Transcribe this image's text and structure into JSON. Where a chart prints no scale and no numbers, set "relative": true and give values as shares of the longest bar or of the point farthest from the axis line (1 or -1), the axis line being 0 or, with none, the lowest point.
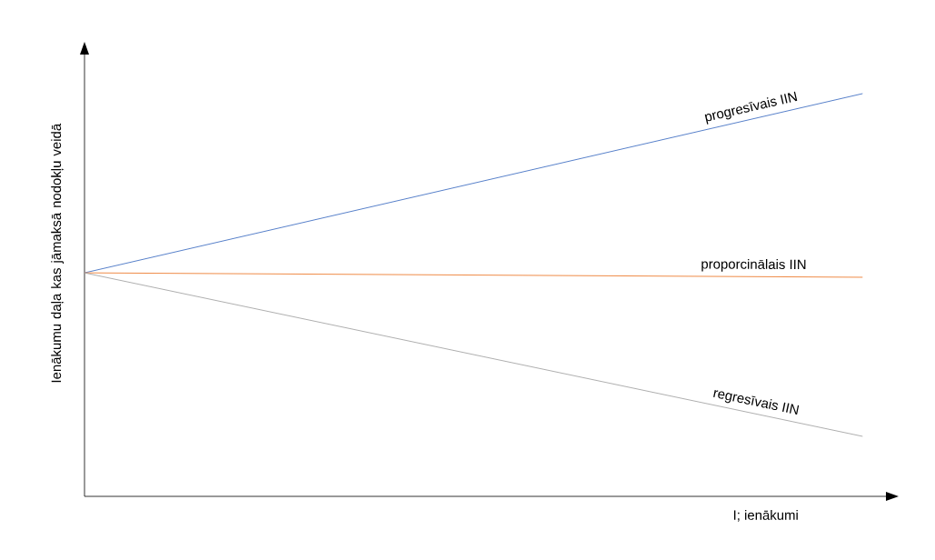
{
  "chart_data": {
    "type": "line",
    "relative": true,
    "categories": [
      null,
      null
    ],
    "xlabel": "I; ienākumi",
    "ylabel": "Ienākumu daļa kas jāmaksā nodokļu veidā",
    "series": [
      {
        "name": "progresīvais IIN",
        "color": "#4472c4",
        "values": [
          0.555,
          1
        ]
      },
      {
        "name": "proporcinālais IIN",
        "color": "#ed7d31",
        "values": [
          0.555,
          0.544
        ]
      },
      {
        "name": "regresīvais IIN",
        "color": "#a5a5a5",
        "values": [
          0.555,
          0.149
        ]
      }
    ]
  }
}
